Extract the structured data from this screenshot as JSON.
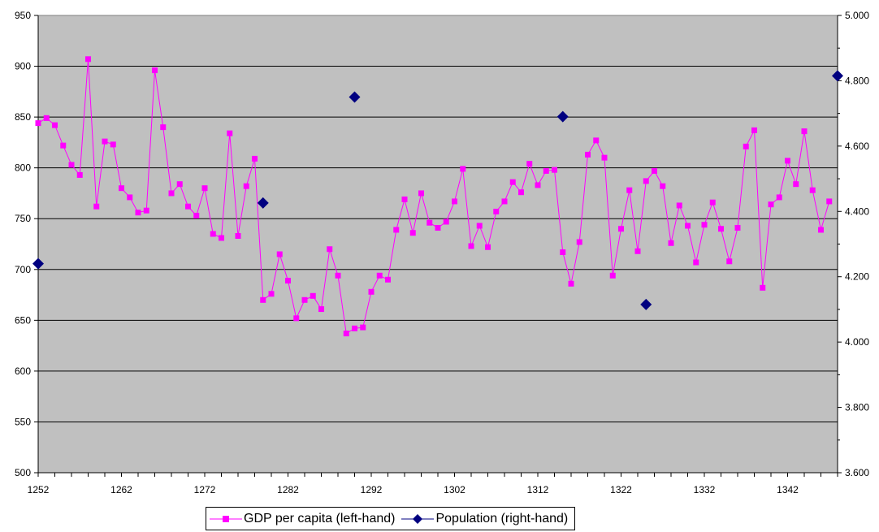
{
  "chart_data": {
    "type": "line",
    "x": [
      1252,
      1253,
      1254,
      1255,
      1256,
      1257,
      1258,
      1259,
      1260,
      1261,
      1262,
      1263,
      1264,
      1265,
      1266,
      1267,
      1268,
      1269,
      1270,
      1271,
      1272,
      1273,
      1274,
      1275,
      1276,
      1277,
      1278,
      1279,
      1280,
      1281,
      1282,
      1283,
      1284,
      1285,
      1286,
      1287,
      1288,
      1289,
      1290,
      1291,
      1292,
      1293,
      1294,
      1295,
      1296,
      1297,
      1298,
      1299,
      1300,
      1301,
      1302,
      1303,
      1304,
      1305,
      1306,
      1307,
      1308,
      1309,
      1310,
      1311,
      1312,
      1313,
      1314,
      1315,
      1316,
      1317,
      1318,
      1319,
      1320,
      1321,
      1322,
      1323,
      1324,
      1325,
      1326,
      1327,
      1328,
      1329,
      1330,
      1331,
      1332,
      1333,
      1334,
      1335,
      1336,
      1337,
      1338,
      1339,
      1340,
      1341,
      1342,
      1343,
      1344,
      1345,
      1346,
      1347
    ],
    "series": [
      {
        "name": "GDP per capita (left-hand)",
        "axis": "left",
        "color": "#ff00ff",
        "marker": "square",
        "values": [
          844,
          849,
          842,
          822,
          803,
          793,
          907,
          762,
          826,
          823,
          780,
          771,
          756,
          758,
          896,
          840,
          775,
          784,
          762,
          753,
          780,
          735,
          731,
          834,
          733,
          782,
          809,
          670,
          676,
          715,
          689,
          652,
          670,
          674,
          661,
          720,
          694,
          637,
          642,
          643,
          678,
          694,
          690,
          739,
          769,
          736,
          775,
          746,
          741,
          747,
          767,
          799,
          723,
          743,
          722,
          757,
          767,
          786,
          776,
          804,
          783,
          797,
          798,
          717,
          686,
          727,
          813,
          827,
          810,
          694,
          740,
          778,
          718,
          787,
          797,
          782,
          726,
          763,
          743,
          707,
          744,
          766,
          740,
          708,
          741,
          821,
          837,
          682,
          764,
          771,
          807,
          784,
          836,
          778,
          739,
          767
        ]
      },
      {
        "name": "Population (right-hand)",
        "axis": "right",
        "color": "#000080",
        "marker": "diamond",
        "points": [
          {
            "x": 1252,
            "y": 4.24
          },
          {
            "x": 1279,
            "y": 4.426
          },
          {
            "x": 1290,
            "y": 4.75
          },
          {
            "x": 1315,
            "y": 4.69
          },
          {
            "x": 1325,
            "y": 4.115
          },
          {
            "x": 1348,
            "y": 4.815
          }
        ]
      }
    ],
    "xlim": [
      1252,
      1348
    ],
    "x_tick_labels": [
      "1252",
      "1262",
      "1272",
      "1282",
      "1292",
      "1302",
      "1312",
      "1322",
      "1332",
      "1342"
    ],
    "ylim_left": [
      500,
      950
    ],
    "y_left_tick_labels": [
      "500",
      "550",
      "600",
      "650",
      "700",
      "750",
      "800",
      "850",
      "900",
      "950"
    ],
    "ylim_right": [
      3.6,
      5.0
    ],
    "y_right_tick_labels": [
      "3.600",
      "3.800",
      "4.000",
      "4.200",
      "4.400",
      "4.600",
      "4.800",
      "5.000"
    ],
    "plot_background": "#c0c0c0",
    "grid": "horizontal",
    "legend_position": "bottom-center"
  }
}
